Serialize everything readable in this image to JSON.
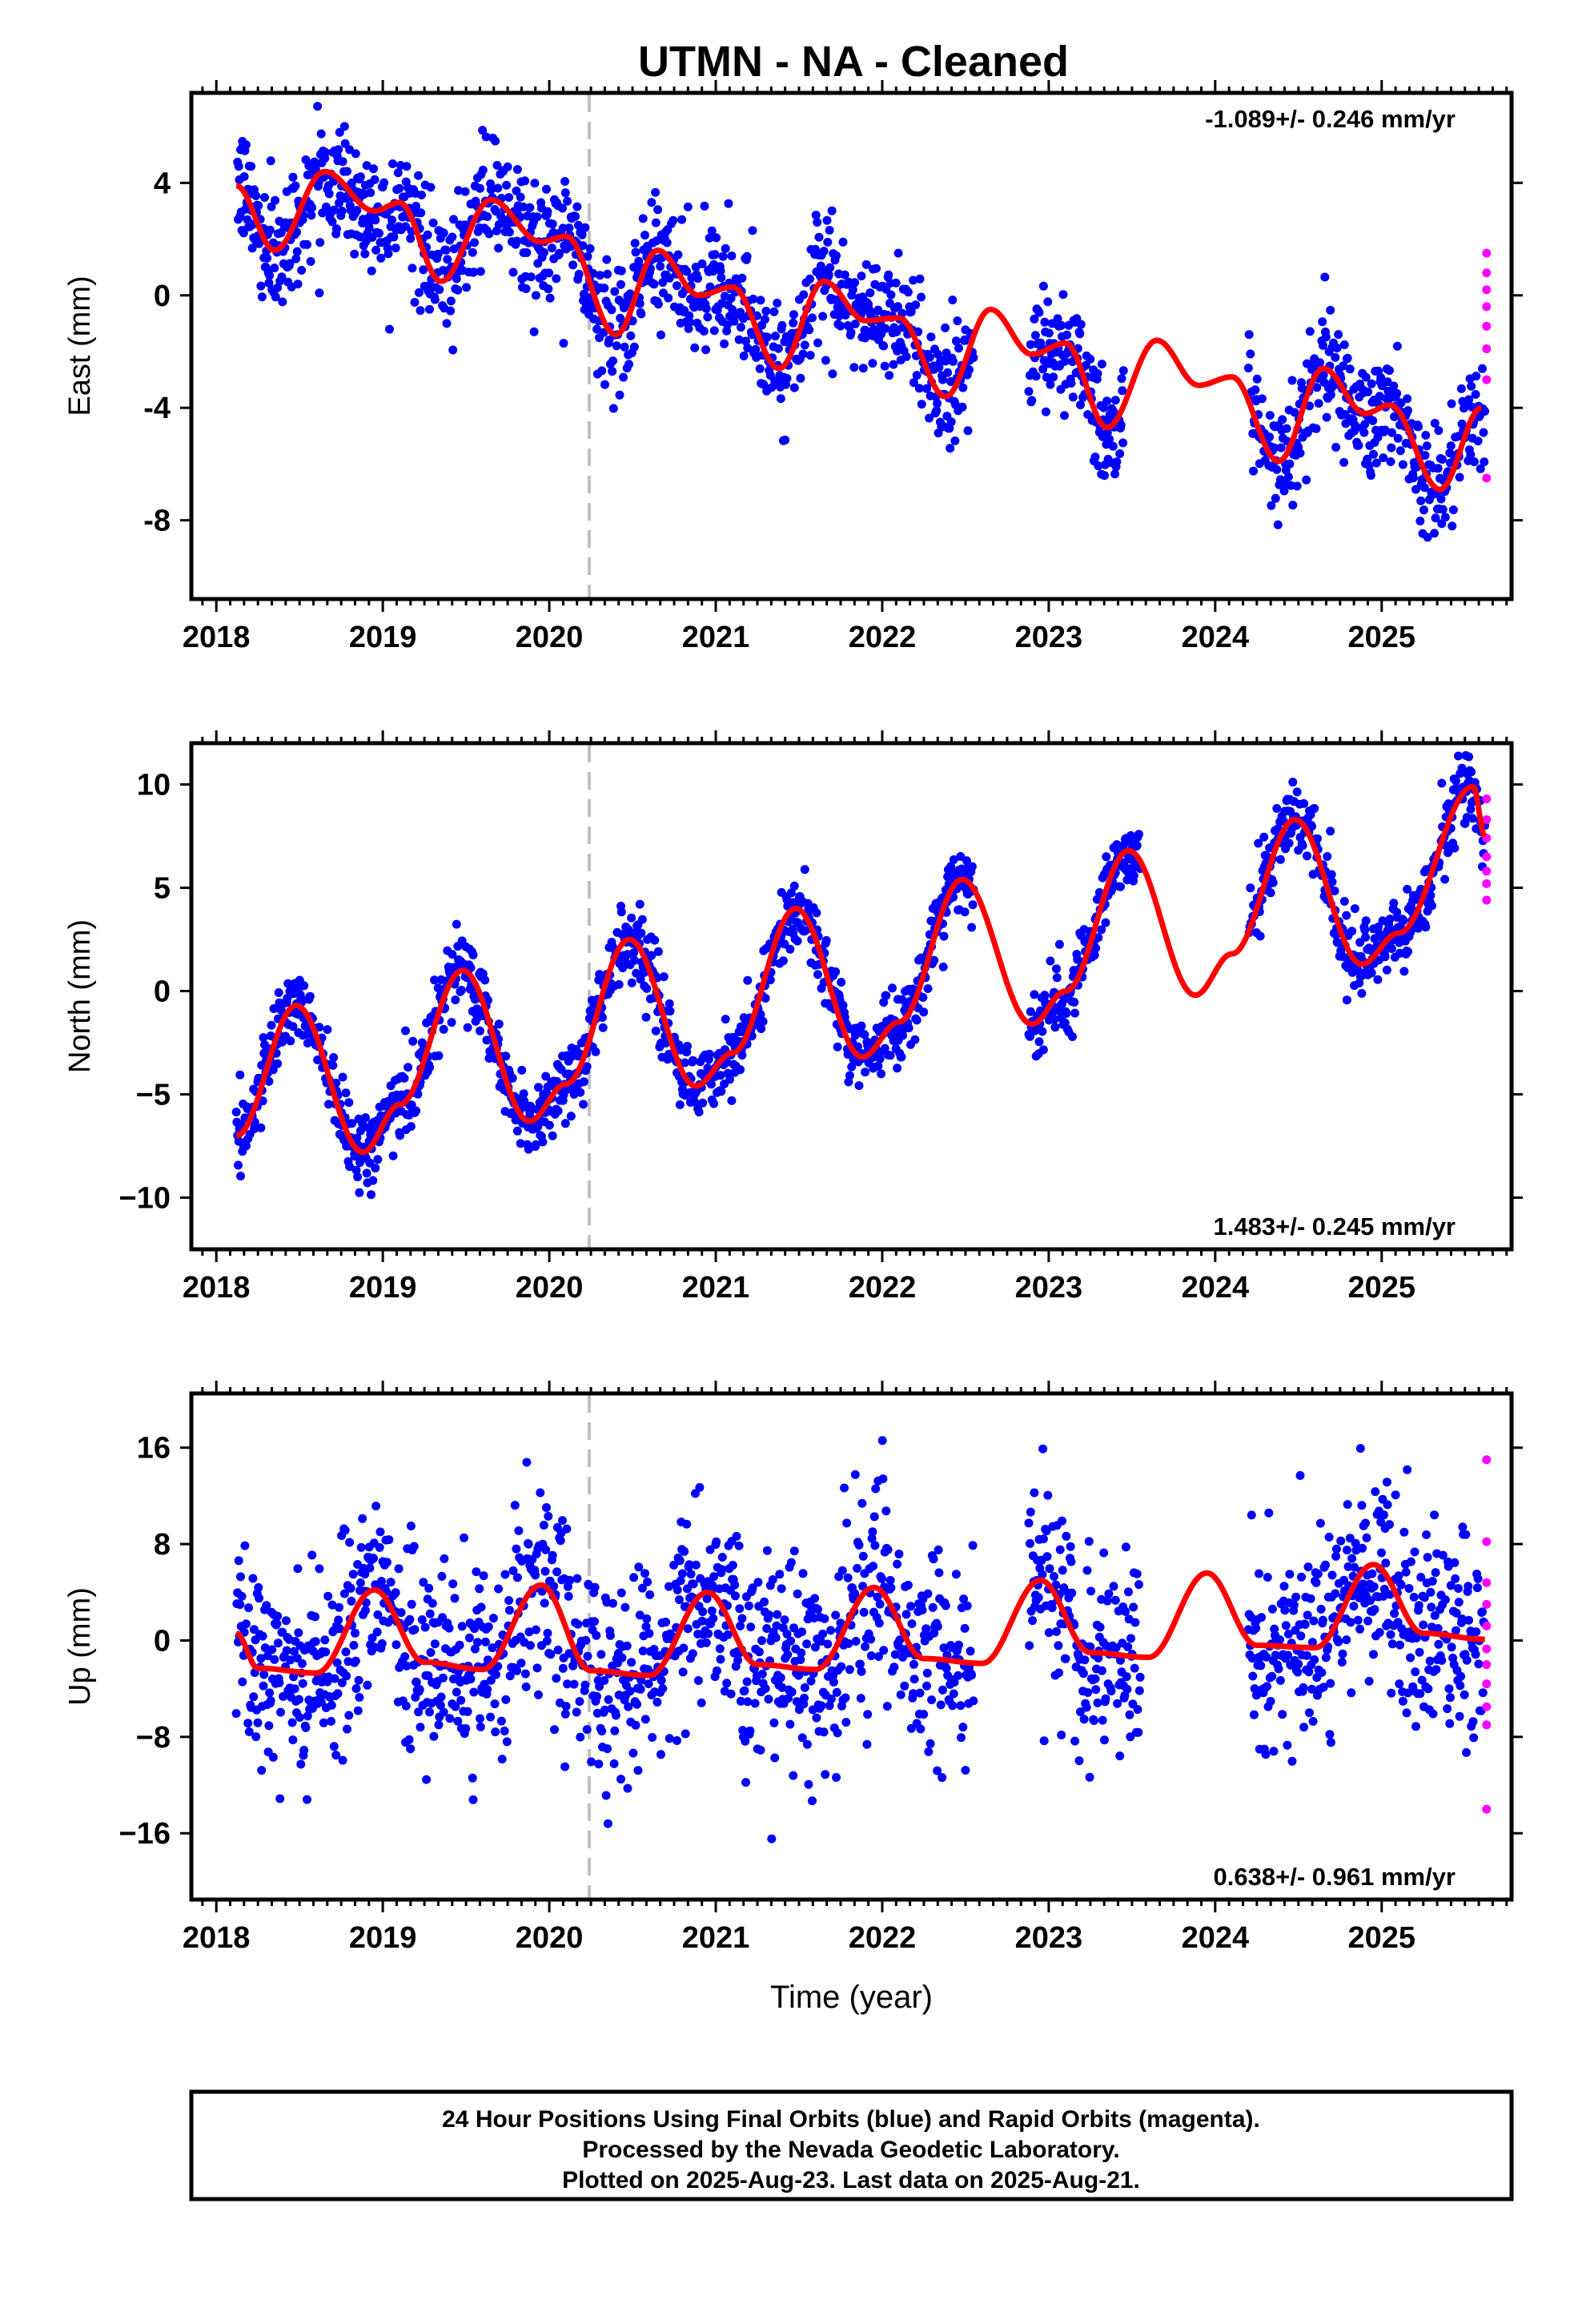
{
  "title": "UTMN  - NA - Cleaned",
  "footer": {
    "line1": "24 Hour Positions Using Final Orbits (blue) and Rapid Orbits (magenta).",
    "line2": "Processed by the Nevada Geodetic Laboratory.",
    "line3": "Plotted on 2025-Aug-23. Last data on 2025-Aug-21."
  },
  "colors": {
    "final": "#0000ff",
    "rapid": "#ff00ff",
    "model": "#ff0000",
    "marker": "#c0c0c0"
  },
  "chart_data": [
    {
      "type": "scatter",
      "ylabel": "East (mm)",
      "xlabel": "",
      "rate": "-1.089+/- 0.246 mm/yr",
      "rate_position": "top-right",
      "xlim": [
        2017.85,
        2025.78
      ],
      "ylim": [
        -10.8,
        7.2
      ],
      "yticks": [
        -8,
        -4,
        0,
        4
      ],
      "ytick_labels": [
        "-8",
        "-4",
        "0",
        "4"
      ],
      "xticks": [
        2018,
        2019,
        2020,
        2021,
        2022,
        2023,
        2024,
        2025
      ],
      "xtick_labels": [
        "2018",
        "2019",
        "2020",
        "2021",
        "2022",
        "2023",
        "2024",
        "2025"
      ],
      "event_marker_year": 2020.24,
      "trend": {
        "t0": 2018.12,
        "y0": 3.0,
        "slope": -1.089
      },
      "seasonal": {
        "annual_amp": 1.1,
        "annual_phase_peak": 2018.63,
        "semiannual_amp": 0.5,
        "semiannual_phase_peak": 2018.7
      },
      "model_curve": [
        [
          2018.12,
          3.9
        ],
        [
          2018.35,
          1.6
        ],
        [
          2018.65,
          4.4
        ],
        [
          2018.95,
          3.0
        ],
        [
          2019.1,
          3.3
        ],
        [
          2019.35,
          0.5
        ],
        [
          2019.65,
          3.4
        ],
        [
          2019.95,
          1.9
        ],
        [
          2020.1,
          2.1
        ],
        [
          2020.4,
          -1.4
        ],
        [
          2020.65,
          1.6
        ],
        [
          2020.9,
          0.0
        ],
        [
          2021.1,
          0.3
        ],
        [
          2021.38,
          -2.6
        ],
        [
          2021.65,
          0.5
        ],
        [
          2021.9,
          -0.9
        ],
        [
          2022.1,
          -0.8
        ],
        [
          2022.38,
          -3.6
        ],
        [
          2022.65,
          -0.5
        ],
        [
          2022.9,
          -2.1
        ],
        [
          2023.1,
          -1.7
        ],
        [
          2023.35,
          -4.7
        ],
        [
          2023.65,
          -1.6
        ],
        [
          2023.9,
          -3.2
        ],
        [
          2024.1,
          -2.9
        ],
        [
          2024.38,
          -5.9
        ],
        [
          2024.65,
          -2.6
        ],
        [
          2024.9,
          -4.2
        ],
        [
          2025.05,
          -3.9
        ],
        [
          2025.35,
          -6.9
        ],
        [
          2025.6,
          -4.0
        ]
      ],
      "segments": [
        [
          2018.12,
          2022.55
        ],
        [
          2022.88,
          2023.45
        ],
        [
          2024.2,
          2025.62
        ]
      ],
      "noise_sd": 1.05,
      "rapid_points": [
        [
          2025.63,
          1.5
        ],
        [
          2025.63,
          0.8
        ],
        [
          2025.63,
          0.2
        ],
        [
          2025.63,
          -0.4
        ],
        [
          2025.63,
          -1.1
        ],
        [
          2025.63,
          -1.9
        ],
        [
          2025.63,
          -3.0
        ],
        [
          2025.63,
          -6.5
        ]
      ]
    },
    {
      "type": "scatter",
      "ylabel": "North (mm)",
      "xlabel": "",
      "rate": "1.483+/- 0.245 mm/yr",
      "rate_position": "bottom-right",
      "xlim": [
        2017.85,
        2025.78
      ],
      "ylim": [
        -12.5,
        12.0
      ],
      "yticks": [
        -10,
        -5,
        0,
        5,
        10
      ],
      "ytick_labels": [
        "−10",
        "−5",
        "0",
        "5",
        "10"
      ],
      "xticks": [
        2018,
        2019,
        2020,
        2021,
        2022,
        2023,
        2024,
        2025
      ],
      "xtick_labels": [
        "2018",
        "2019",
        "2020",
        "2021",
        "2022",
        "2023",
        "2024",
        "2025"
      ],
      "event_marker_year": 2020.24,
      "model_curve": [
        [
          2018.12,
          -7.0
        ],
        [
          2018.48,
          -0.7
        ],
        [
          2018.88,
          -7.8
        ],
        [
          2019.1,
          -5.5
        ],
        [
          2019.48,
          1.0
        ],
        [
          2019.88,
          -6.3
        ],
        [
          2020.1,
          -4.5
        ],
        [
          2020.48,
          2.5
        ],
        [
          2020.88,
          -4.6
        ],
        [
          2021.1,
          -3.0
        ],
        [
          2021.48,
          4.0
        ],
        [
          2021.88,
          -3.2
        ],
        [
          2022.1,
          -1.5
        ],
        [
          2022.48,
          5.4
        ],
        [
          2022.9,
          -1.6
        ],
        [
          2023.1,
          0.0
        ],
        [
          2023.48,
          6.8
        ],
        [
          2023.88,
          -0.2
        ],
        [
          2024.1,
          1.8
        ],
        [
          2024.48,
          8.3
        ],
        [
          2024.88,
          1.3
        ],
        [
          2025.1,
          2.8
        ],
        [
          2025.55,
          9.9
        ],
        [
          2025.62,
          7.5
        ]
      ],
      "segments": [
        [
          2018.12,
          2022.55
        ],
        [
          2022.88,
          2023.55
        ],
        [
          2024.2,
          2025.62
        ]
      ],
      "noise_sd": 0.9,
      "rapid_points": [
        [
          2025.63,
          9.3
        ],
        [
          2025.63,
          8.3
        ],
        [
          2025.63,
          7.4
        ],
        [
          2025.63,
          6.5
        ],
        [
          2025.63,
          5.8
        ],
        [
          2025.63,
          5.2
        ],
        [
          2025.63,
          4.4
        ]
      ]
    },
    {
      "type": "scatter",
      "ylabel": "Up (mm)",
      "xlabel": "Time (year)",
      "rate": "0.638+/- 0.961 mm/yr",
      "rate_position": "bottom-right",
      "xlim": [
        2017.85,
        2025.78
      ],
      "ylim": [
        -21.5,
        20.5
      ],
      "yticks": [
        -16,
        -8,
        0,
        8,
        16
      ],
      "ytick_labels": [
        "−16",
        "−8",
        "0",
        "8",
        "16"
      ],
      "xticks": [
        2018,
        2019,
        2020,
        2021,
        2022,
        2023,
        2024,
        2025
      ],
      "xtick_labels": [
        "2018",
        "2019",
        "2020",
        "2021",
        "2022",
        "2023",
        "2024",
        "2025"
      ],
      "event_marker_year": 2020.24,
      "model_curve": [
        [
          2018.12,
          0.6
        ],
        [
          2018.25,
          -2.3
        ],
        [
          2018.6,
          -2.7
        ],
        [
          2018.95,
          4.2
        ],
        [
          2019.25,
          -1.8
        ],
        [
          2019.6,
          -2.4
        ],
        [
          2019.95,
          4.6
        ],
        [
          2020.25,
          -2.5
        ],
        [
          2020.6,
          -2.9
        ],
        [
          2020.95,
          4.0
        ],
        [
          2021.25,
          -2.0
        ],
        [
          2021.6,
          -2.4
        ],
        [
          2021.95,
          4.4
        ],
        [
          2022.25,
          -1.5
        ],
        [
          2022.6,
          -1.9
        ],
        [
          2022.95,
          5.0
        ],
        [
          2023.25,
          -1.0
        ],
        [
          2023.6,
          -1.4
        ],
        [
          2023.95,
          5.6
        ],
        [
          2024.25,
          -0.4
        ],
        [
          2024.6,
          -0.6
        ],
        [
          2024.95,
          6.3
        ],
        [
          2025.25,
          0.6
        ],
        [
          2025.62,
          0.1
        ]
      ],
      "segments": [
        [
          2018.12,
          2022.55
        ],
        [
          2022.88,
          2023.55
        ],
        [
          2024.2,
          2025.62
        ]
      ],
      "noise_sd": 4.2,
      "rapid_points": [
        [
          2025.63,
          15.0
        ],
        [
          2025.63,
          8.2
        ],
        [
          2025.63,
          4.8
        ],
        [
          2025.63,
          3.0
        ],
        [
          2025.63,
          1.2
        ],
        [
          2025.63,
          -0.7
        ],
        [
          2025.63,
          -2.0
        ],
        [
          2025.63,
          -3.6
        ],
        [
          2025.63,
          -5.5
        ],
        [
          2025.63,
          -7.0
        ],
        [
          2025.63,
          -14.0
        ]
      ]
    }
  ]
}
